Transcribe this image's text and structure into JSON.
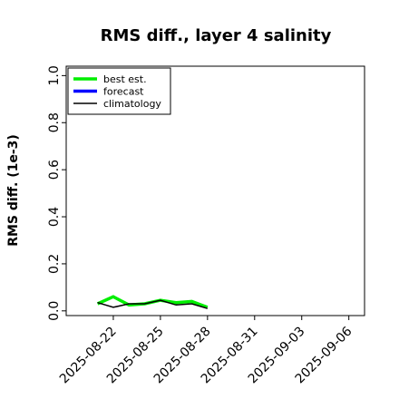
{
  "chart_data": {
    "type": "line",
    "title": "RMS diff., layer 4 salinity",
    "xlabel": "",
    "ylabel": "RMS diff. (1e-3)",
    "ylim": [
      -0.02,
      1.04
    ],
    "yticks": [
      0.0,
      0.2,
      0.4,
      0.6,
      0.8,
      1.0
    ],
    "ytick_labels": [
      "0.0",
      "0.2",
      "0.4",
      "0.6",
      "0.8",
      "1.0"
    ],
    "xlim": [
      "2025-08-19",
      "2025-09-07"
    ],
    "xticks": [
      "2025-08-22",
      "2025-08-25",
      "2025-08-28",
      "2025-08-31",
      "2025-09-03",
      "2025-09-06"
    ],
    "xtick_labels": [
      "2025-08-22",
      "2025-08-25",
      "2025-08-28",
      "2025-08-31",
      "2025-09-03",
      "2025-09-06"
    ],
    "highlighted_xtick": "2025-08-28",
    "highlight_color": "#2e8b2e",
    "grid": false,
    "legend_position": "top-left",
    "series": [
      {
        "name": "best est.",
        "color": "#00ee00",
        "x": [
          "2025-08-21",
          "2025-08-22",
          "2025-08-23",
          "2025-08-24",
          "2025-08-25",
          "2025-08-26",
          "2025-08-27",
          "2025-08-28"
        ],
        "y": [
          0.03,
          0.06,
          0.025,
          0.03,
          0.045,
          0.035,
          0.04,
          0.015
        ]
      },
      {
        "name": "forecast",
        "color": "#0000ff",
        "x": [],
        "y": []
      },
      {
        "name": "climatology",
        "color": "#000000",
        "x": [
          "2025-08-21",
          "2025-08-22",
          "2025-08-23",
          "2025-08-24",
          "2025-08-25",
          "2025-08-26",
          "2025-08-27",
          "2025-08-28"
        ],
        "y": [
          0.035,
          0.015,
          0.03,
          0.03,
          0.045,
          0.025,
          0.03,
          0.01
        ]
      }
    ]
  }
}
